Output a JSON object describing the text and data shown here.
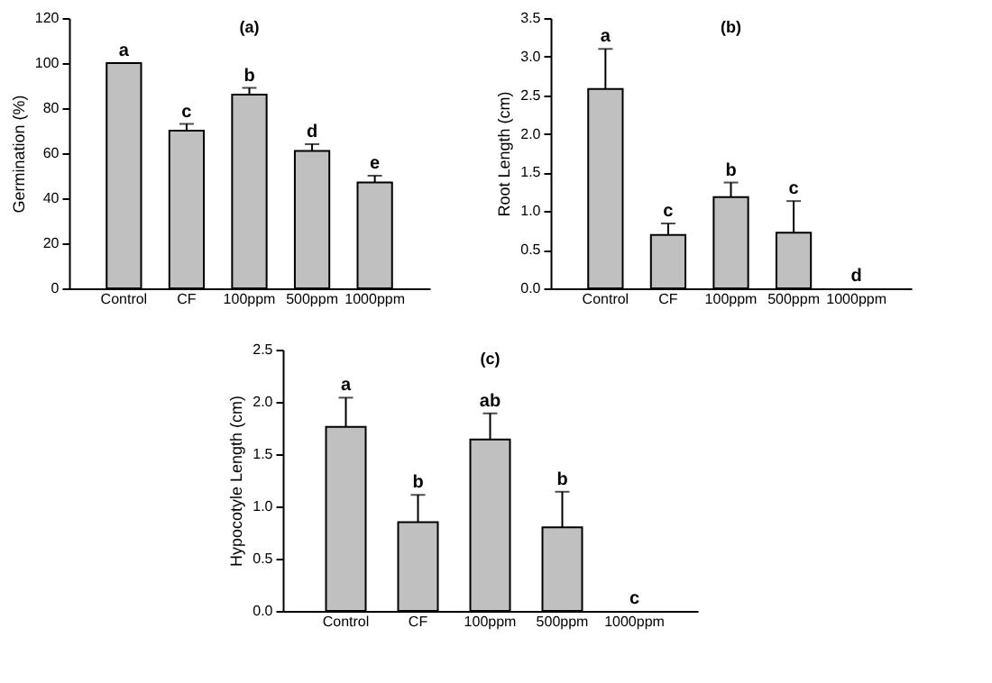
{
  "chart_data": [
    {
      "type": "bar",
      "title": "(a)",
      "ylabel": "Germination (%)",
      "categories": [
        "Control",
        "CF",
        "100ppm",
        "500ppm",
        "1000ppm"
      ],
      "values": [
        100,
        70,
        86,
        61,
        47
      ],
      "errors": [
        null,
        [
          70,
          73
        ],
        [
          86,
          89
        ],
        [
          61,
          64
        ],
        [
          47,
          50
        ]
      ],
      "color": "#c0c0c0",
      "ylim": [
        0,
        120
      ],
      "yticks": [
        0,
        20,
        40,
        60,
        80,
        100,
        120
      ],
      "grid": false,
      "annotations": [
        {
          "text": "a",
          "x": "Control",
          "y": 100
        },
        {
          "text": "c",
          "x": "CF",
          "y": 73
        },
        {
          "text": "b",
          "x": "100ppm",
          "y": 89
        },
        {
          "text": "d",
          "x": "500ppm",
          "y": 64
        },
        {
          "text": "e",
          "x": "1000ppm",
          "y": 50
        }
      ]
    },
    {
      "type": "bar",
      "title": "(b)",
      "ylabel": "Root Length (cm)",
      "categories": [
        "Control",
        "CF",
        "100ppm",
        "500ppm",
        "1000ppm"
      ],
      "values": [
        2.58,
        0.69,
        1.18,
        0.72,
        0
      ],
      "errors": [
        [
          2.58,
          3.1
        ],
        [
          0.69,
          0.84
        ],
        [
          1.18,
          1.37
        ],
        [
          0.72,
          1.13
        ],
        null
      ],
      "color": "#c0c0c0",
      "ylim": [
        0,
        3.5
      ],
      "yticks": [
        {
          "value": 0,
          "label": "0.0"
        },
        0.5,
        {
          "value": 1,
          "label": "1.0"
        },
        1.5,
        {
          "value": 2,
          "label": "2.0"
        },
        2.5,
        {
          "value": 3,
          "label": "3.0"
        },
        3.5
      ],
      "grid": false,
      "annotations": [
        {
          "text": "a",
          "x": "Control",
          "y": 3.1
        },
        {
          "text": "c",
          "x": "CF",
          "y": 0.84
        },
        {
          "text": "b",
          "x": "100ppm",
          "y": 1.37
        },
        {
          "text": "c",
          "x": "500ppm",
          "y": 1.13
        },
        {
          "text": "d",
          "x": "1000ppm",
          "y": 0
        }
      ]
    },
    {
      "type": "bar",
      "title": "(c)",
      "ylabel": "Hypocotyle Length (cm)",
      "categories": [
        "Control",
        "CF",
        "100ppm",
        "500ppm",
        "1000ppm"
      ],
      "values": [
        1.76,
        0.85,
        1.64,
        0.8,
        0
      ],
      "errors": [
        [
          1.76,
          2.04
        ],
        [
          0.85,
          1.11
        ],
        [
          1.64,
          1.89
        ],
        [
          0.8,
          1.14
        ],
        null
      ],
      "color": "#c0c0c0",
      "ylim": [
        0,
        2.5
      ],
      "yticks": [
        {
          "value": 0,
          "label": "0.0"
        },
        0.5,
        {
          "value": 1,
          "label": "1.0"
        },
        1.5,
        {
          "value": 2,
          "label": "2.0"
        },
        2.5
      ],
      "grid": false,
      "annotations": [
        {
          "text": "a",
          "x": "Control",
          "y": 2.04
        },
        {
          "text": "b",
          "x": "CF",
          "y": 1.11
        },
        {
          "text": "ab",
          "x": "100ppm",
          "y": 1.89
        },
        {
          "text": "b",
          "x": "500ppm",
          "y": 1.14
        },
        {
          "text": "c",
          "x": "1000ppm",
          "y": 0
        }
      ]
    }
  ]
}
